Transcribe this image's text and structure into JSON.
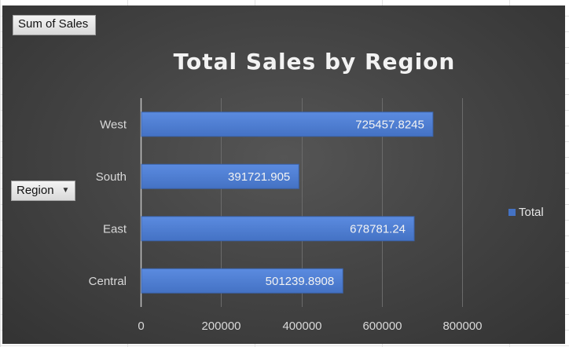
{
  "pivot": {
    "value_field": "Sum of Sales",
    "row_field": "Region"
  },
  "colors": {
    "bar": "#4472c4",
    "bar_top": "#5b8be0",
    "gridline": "#6b6b6b",
    "axis": "#bfbfbf"
  },
  "icons": {
    "filter_dropdown": "caret-down-icon"
  },
  "chart_data": {
    "type": "bar",
    "orientation": "horizontal",
    "title": "Total Sales by Region",
    "categories": [
      "Central",
      "East",
      "South",
      "West"
    ],
    "series": [
      {
        "name": "Total",
        "values": [
          501239.8908,
          678781.24,
          391721.905,
          725457.8245
        ]
      }
    ],
    "data_labels": [
      "501239.8908",
      "678781.24",
      "391721.905",
      "725457.8245"
    ],
    "xlim": [
      0,
      800000
    ],
    "x_ticks": [
      0,
      200000,
      400000,
      600000,
      800000
    ],
    "x_tick_labels": [
      "0",
      "200000",
      "400000",
      "600000",
      "800000"
    ],
    "grid": "vertical",
    "legend_position": "right"
  }
}
